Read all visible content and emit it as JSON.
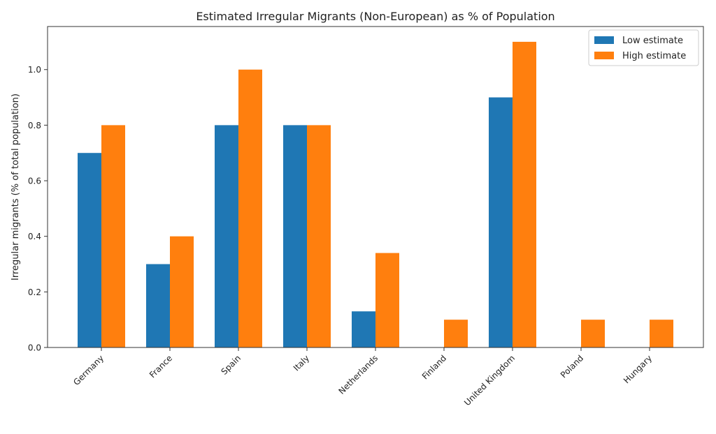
{
  "chart_data": {
    "type": "bar",
    "title": "Estimated Irregular Migrants (Non-European) as % of Population",
    "xlabel": "",
    "ylabel": "Irregular migrants (% of total population)",
    "categories": [
      "Germany",
      "France",
      "Spain",
      "Italy",
      "Netherlands",
      "Finland",
      "United Kingdom",
      "Poland",
      "Hungary"
    ],
    "series": [
      {
        "name": "Low estimate",
        "color": "#1f77b4",
        "values": [
          0.7,
          0.3,
          0.8,
          0.8,
          0.13,
          0,
          0.9,
          0,
          0
        ]
      },
      {
        "name": "High estimate",
        "color": "#ff7f0e",
        "values": [
          0.8,
          0.4,
          1.0,
          0.8,
          0.34,
          0.1,
          1.1,
          0.1,
          0.1
        ]
      }
    ],
    "ylim": [
      0,
      1.155
    ],
    "yticks": [
      "0.0",
      "0.2",
      "0.4",
      "0.6",
      "0.8",
      "1.0"
    ],
    "grid": false,
    "legend_position": "top-right"
  }
}
